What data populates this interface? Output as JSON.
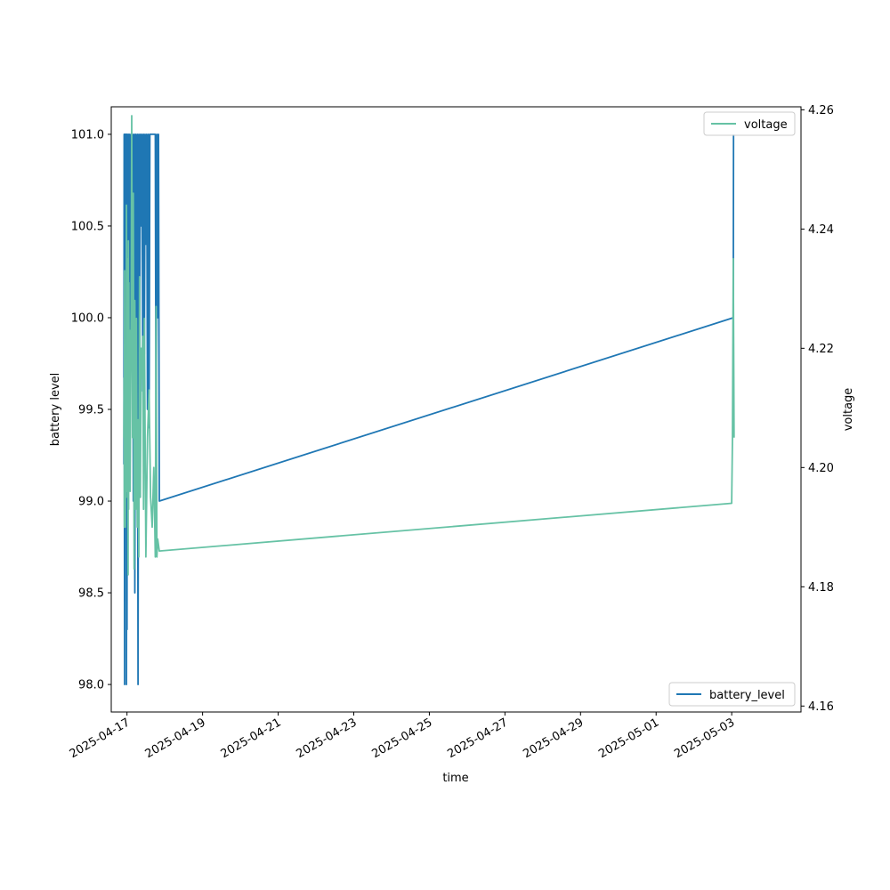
{
  "chart_data": {
    "type": "line",
    "xlabel": "time",
    "ylabel_left": "battery level",
    "ylabel_right": "voltage",
    "x_ticks": [
      "2025-04-17",
      "2025-04-19",
      "2025-04-21",
      "2025-04-23",
      "2025-04-25",
      "2025-04-27",
      "2025-04-29",
      "2025-05-01",
      "2025-05-03"
    ],
    "xlim": [
      "2025-04-16 14:00",
      "2025-05-04 20:00"
    ],
    "y_left_ticks": [
      "98.0",
      "98.5",
      "99.0",
      "99.5",
      "100.0",
      "100.5",
      "101.0"
    ],
    "ylim_left": [
      97.85,
      101.15
    ],
    "y_right_ticks": [
      "4.16",
      "4.18",
      "4.20",
      "4.22",
      "4.24",
      "4.26"
    ],
    "ylim_right": [
      4.159,
      4.2605
    ],
    "legend_left": {
      "label": "battery_level",
      "placement": "lower-right"
    },
    "legend_right": {
      "label": "voltage",
      "placement": "upper-right"
    },
    "colors": {
      "battery_level": "#1f77b4",
      "voltage": "#66c2a5"
    },
    "series": [
      {
        "name": "battery_level",
        "axis": "left",
        "points": [
          [
            "2025-04-16 22:00",
            99.2
          ],
          [
            "2025-04-16 22:10",
            101
          ],
          [
            "2025-04-16 22:20",
            99.6
          ],
          [
            "2025-04-16 22:30",
            98
          ],
          [
            "2025-04-16 22:40",
            101
          ],
          [
            "2025-04-16 22:50",
            100.2
          ],
          [
            "2025-04-16 23:00",
            101
          ],
          [
            "2025-04-16 23:10",
            99.8
          ],
          [
            "2025-04-16 23:20",
            101
          ],
          [
            "2025-04-16 23:30",
            100
          ],
          [
            "2025-04-16 23:40",
            98
          ],
          [
            "2025-04-16 23:50",
            101
          ],
          [
            "2025-04-17 00:00",
            98.3
          ],
          [
            "2025-04-17 00:10",
            101
          ],
          [
            "2025-04-17 00:30",
            99.9
          ],
          [
            "2025-04-17 00:50",
            101
          ],
          [
            "2025-04-17 01:10",
            100.3
          ],
          [
            "2025-04-17 01:30",
            101
          ],
          [
            "2025-04-17 02:00",
            99.5
          ],
          [
            "2025-04-17 02:30",
            101
          ],
          [
            "2025-04-17 03:00",
            100
          ],
          [
            "2025-04-17 03:30",
            101
          ],
          [
            "2025-04-17 04:00",
            99
          ],
          [
            "2025-04-17 04:30",
            101
          ],
          [
            "2025-04-17 05:00",
            98.5
          ],
          [
            "2025-04-17 05:30",
            101
          ],
          [
            "2025-04-17 06:00",
            99.2
          ],
          [
            "2025-04-17 06:30",
            101
          ],
          [
            "2025-04-17 07:00",
            98
          ],
          [
            "2025-04-17 07:30",
            101
          ],
          [
            "2025-04-17 08:00",
            99.8
          ],
          [
            "2025-04-17 08:30",
            101
          ],
          [
            "2025-04-17 09:00",
            100.5
          ],
          [
            "2025-04-17 09:30",
            101
          ],
          [
            "2025-04-17 10:00",
            99.6
          ],
          [
            "2025-04-17 10:30",
            101
          ],
          [
            "2025-04-17 11:00",
            99.8
          ],
          [
            "2025-04-17 11:30",
            101
          ],
          [
            "2025-04-17 12:00",
            100.4
          ],
          [
            "2025-04-17 12:30",
            101
          ],
          [
            "2025-04-17 13:00",
            99.5
          ],
          [
            "2025-04-17 13:30",
            101
          ],
          [
            "2025-04-17 14:00",
            99.4
          ],
          [
            "2025-04-17 14:30",
            101
          ],
          [
            "2025-04-17 16:00",
            101
          ],
          [
            "2025-04-17 18:00",
            101
          ],
          [
            "2025-04-17 18:30",
            99.1
          ],
          [
            "2025-04-17 19:00",
            101
          ],
          [
            "2025-04-17 19:30",
            100
          ],
          [
            "2025-04-17 20:00",
            101
          ],
          [
            "2025-04-17 20:30",
            99
          ],
          [
            "2025-05-03 01:00",
            100
          ],
          [
            "2025-05-03 01:10",
            101
          ]
        ]
      },
      {
        "name": "voltage",
        "axis": "right",
        "points": [
          [
            "2025-04-16 22:00",
            4.205
          ],
          [
            "2025-04-16 22:10",
            4.215
          ],
          [
            "2025-04-16 22:20",
            4.19
          ],
          [
            "2025-04-16 22:30",
            4.233
          ],
          [
            "2025-04-16 22:40",
            4.195
          ],
          [
            "2025-04-16 22:50",
            4.205
          ],
          [
            "2025-04-16 23:00",
            4.19
          ],
          [
            "2025-04-16 23:10",
            4.218
          ],
          [
            "2025-04-16 23:20",
            4.213
          ],
          [
            "2025-04-16 23:30",
            4.195
          ],
          [
            "2025-04-16 23:40",
            4.244
          ],
          [
            "2025-04-16 23:50",
            4.225
          ],
          [
            "2025-04-17 00:00",
            4.196
          ],
          [
            "2025-04-17 00:10",
            4.23
          ],
          [
            "2025-04-17 00:20",
            4.2
          ],
          [
            "2025-04-17 00:30",
            4.235
          ],
          [
            "2025-04-17 00:40",
            4.182
          ],
          [
            "2025-04-17 00:50",
            4.238
          ],
          [
            "2025-04-17 01:00",
            4.193
          ],
          [
            "2025-04-17 01:10",
            4.231
          ],
          [
            "2025-04-17 01:20",
            4.2
          ],
          [
            "2025-04-17 01:40",
            4.223
          ],
          [
            "2025-04-17 02:00",
            4.196
          ],
          [
            "2025-04-17 02:20",
            4.214
          ],
          [
            "2025-04-17 02:40",
            4.226
          ],
          [
            "2025-04-17 03:00",
            4.259
          ],
          [
            "2025-04-17 03:30",
            4.205
          ],
          [
            "2025-04-17 04:00",
            4.246
          ],
          [
            "2025-04-17 04:30",
            4.183
          ],
          [
            "2025-04-17 05:00",
            4.228
          ],
          [
            "2025-04-17 05:30",
            4.193
          ],
          [
            "2025-04-17 06:00",
            4.225
          ],
          [
            "2025-04-17 06:30",
            4.19
          ],
          [
            "2025-04-17 07:00",
            4.208
          ],
          [
            "2025-04-17 07:30",
            4.185
          ],
          [
            "2025-04-17 08:00",
            4.232
          ],
          [
            "2025-04-17 08:30",
            4.195
          ],
          [
            "2025-04-17 09:00",
            4.22
          ],
          [
            "2025-04-17 09:30",
            4.215
          ],
          [
            "2025-04-17 10:00",
            4.222
          ],
          [
            "2025-04-17 10:30",
            4.193
          ],
          [
            "2025-04-17 11:00",
            4.225
          ],
          [
            "2025-04-17 12:00",
            4.185
          ],
          [
            "2025-04-17 13:00",
            4.205
          ],
          [
            "2025-04-17 14:00",
            4.213
          ],
          [
            "2025-04-17 15:00",
            4.195
          ],
          [
            "2025-04-17 16:00",
            4.19
          ],
          [
            "2025-04-17 17:00",
            4.2
          ],
          [
            "2025-04-17 18:00",
            4.185
          ],
          [
            "2025-04-17 18:30",
            4.227
          ],
          [
            "2025-04-17 19:00",
            4.185
          ],
          [
            "2025-04-17 19:30",
            4.188
          ],
          [
            "2025-04-17 20:30",
            4.186
          ],
          [
            "2025-05-03 00:00",
            4.194
          ],
          [
            "2025-05-03 00:30",
            4.205
          ],
          [
            "2025-05-03 01:00",
            4.235
          ],
          [
            "2025-05-03 01:30",
            4.205
          ]
        ]
      }
    ]
  }
}
